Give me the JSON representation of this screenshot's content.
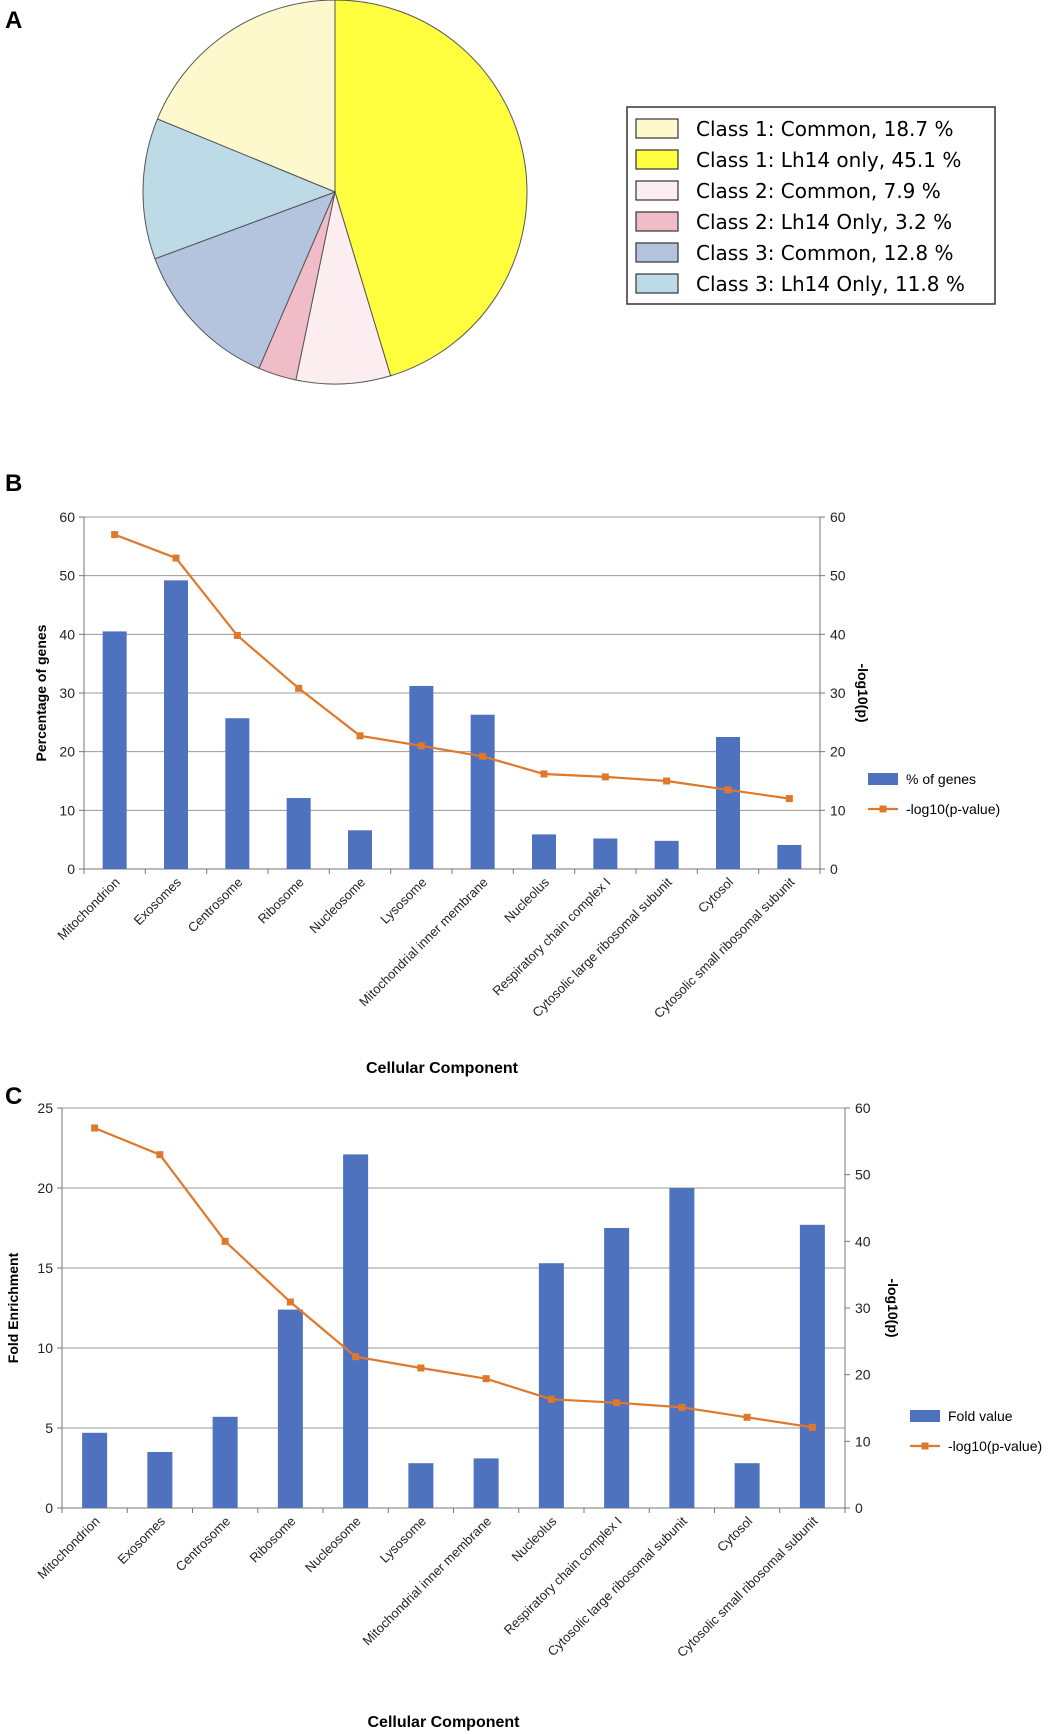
{
  "panels": {
    "a": "A",
    "b": "B",
    "c": "C"
  },
  "colors": {
    "bar": "#4f72bf",
    "line": "#e0782b",
    "grid": "#999999",
    "axis": "#888888"
  },
  "chart_data": [
    {
      "type": "pie",
      "slices": [
        {
          "label": "Class 1: Common, 18.7 %",
          "value": 18.7,
          "color": "#fdf9cc"
        },
        {
          "label": "Class 1: Lh14 only, 45.1 %",
          "value": 45.1,
          "color": "#ffff40"
        },
        {
          "label": "Class 2: Common, 7.9 %",
          "value": 7.9,
          "color": "#fcedf0"
        },
        {
          "label": "Class 2: Lh14 Only, 3.2 %",
          "value": 3.2,
          "color": "#efbcc8"
        },
        {
          "label": "Class 3: Common, 12.8 %",
          "value": 12.8,
          "color": "#b4c4df"
        },
        {
          "label": "Class 3: Lh14 Only, 11.8 %",
          "value": 11.8,
          "color": "#bcdbe7"
        }
      ],
      "legend": "right"
    },
    {
      "type": "bar",
      "categories": [
        "Mitochondrion",
        "Exosomes",
        "Centrosome",
        "Ribosome",
        "Nucleosome",
        "Lysosome",
        "Mitochondrial inner membrane",
        "Nucleolus",
        "Respiratory chain complex I",
        "Cytosolic large ribosomal subunit",
        "Cytosol",
        "Cytosolic small ribosomal subunit"
      ],
      "series": [
        {
          "name": "% of genes",
          "kind": "bar",
          "axis": "left",
          "values": [
            40.5,
            49.2,
            25.7,
            12.1,
            6.6,
            31.2,
            26.3,
            5.9,
            5.2,
            4.8,
            22.5,
            4.1
          ]
        },
        {
          "name": "-log10(p-value)",
          "kind": "line",
          "axis": "right",
          "values": [
            57.0,
            53.0,
            39.8,
            30.8,
            22.7,
            21.0,
            19.2,
            16.2,
            15.7,
            15.0,
            13.5,
            12.0
          ]
        }
      ],
      "xlabel": "Cellular Component",
      "ylabel": "Percentage of genes",
      "y2label": "-log10(p)",
      "ylim": [
        0,
        60
      ],
      "y2lim": [
        0,
        60
      ],
      "yticks": [
        "0",
        "10",
        "20",
        "30",
        "40",
        "50",
        "60"
      ],
      "y2ticks": [
        "0",
        "10",
        "20",
        "30",
        "40",
        "50",
        "60"
      ],
      "grid": true,
      "legend": "right"
    },
    {
      "type": "bar",
      "categories": [
        "Mitochondrion",
        "Exosomes",
        "Centrosome",
        "Ribosome",
        "Nucleosome",
        "Lysosome",
        "Mitochondrial inner membrane",
        "Nucleolus",
        "Respiratory chain complex I",
        "Cytosolic large ribosomal subunit",
        "Cytosol",
        "Cytosolic small ribosomal subunit"
      ],
      "series": [
        {
          "name": "Fold value",
          "kind": "bar",
          "axis": "left",
          "values": [
            4.7,
            3.5,
            5.7,
            12.4,
            22.1,
            2.8,
            3.1,
            15.3,
            17.5,
            20.0,
            2.8,
            17.7
          ]
        },
        {
          "name": "-log10(p-value)",
          "kind": "line",
          "axis": "right",
          "values": [
            57.0,
            53.0,
            40.0,
            30.9,
            22.7,
            21.0,
            19.4,
            16.3,
            15.8,
            15.1,
            13.6,
            12.1
          ]
        }
      ],
      "xlabel": "Cellular Component",
      "ylabel": "Fold Enrichment",
      "y2label": "-log10(p)",
      "ylim": [
        0,
        25
      ],
      "y2lim": [
        0,
        60
      ],
      "yticks": [
        "0",
        "5",
        "10",
        "15",
        "20",
        "25"
      ],
      "y2ticks": [
        "0",
        "10",
        "20",
        "30",
        "40",
        "50",
        "60"
      ],
      "grid": true,
      "legend": "right"
    }
  ]
}
